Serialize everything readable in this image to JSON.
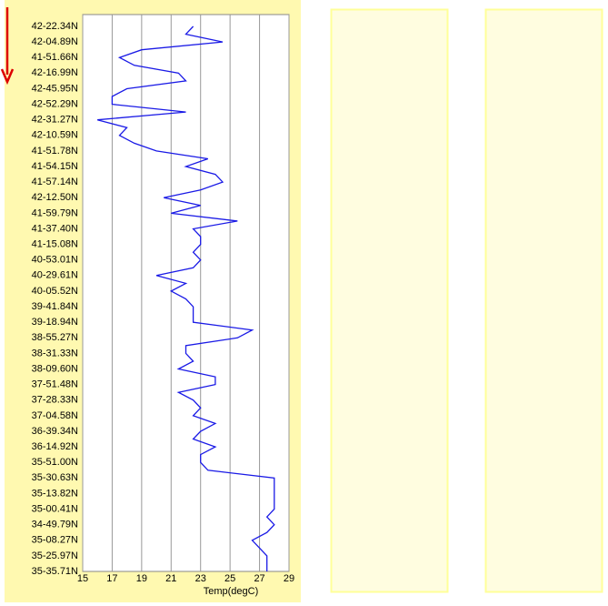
{
  "chart_data": {
    "type": "line",
    "xlabel": "Temp(degC)",
    "categories": [
      "42-22.34N",
      null,
      "42-04.89N",
      null,
      "41-51.66N",
      null,
      "42-16.99N",
      null,
      "42-45.95N",
      null,
      "42-52.29N",
      null,
      "42-31.27N",
      null,
      "42-10.59N",
      null,
      "41-51.78N",
      null,
      "41-54.15N",
      null,
      "41-57.14N",
      null,
      "42-12.50N",
      null,
      "41-59.79N",
      null,
      "41-37.40N",
      null,
      "41-15.08N",
      null,
      "40-53.01N",
      null,
      "40-29.61N",
      null,
      "40-05.52N",
      null,
      "39-41.84N",
      null,
      "39-18.94N",
      null,
      "38-55.27N",
      null,
      "38-31.33N",
      null,
      "38-09.60N",
      null,
      "37-51.48N",
      null,
      "37-28.33N",
      null,
      "37-04.58N",
      null,
      "36-39.34N",
      null,
      "36-14.92N",
      null,
      "35-51.00N",
      null,
      "35-30.63N",
      null,
      "35-13.82N",
      null,
      "35-00.41N",
      null,
      "34-49.79N",
      null,
      "35-08.27N",
      null,
      "35-25.97N",
      null,
      "35-35.71N"
    ],
    "series": [
      {
        "color": "#1a1ae6",
        "values": [
          22.5,
          22,
          24.5,
          19,
          17.5,
          18.5,
          21.5,
          22,
          18,
          17,
          17,
          22,
          16,
          18,
          17.5,
          18.5,
          20,
          23.5,
          22,
          24,
          24.5,
          23,
          20.5,
          23,
          21,
          25.5,
          22.5,
          23,
          23,
          22.5,
          23,
          22.5,
          20,
          22,
          21,
          22,
          22.5,
          22.5,
          22.5,
          26.5,
          25.5,
          22,
          22,
          22.5,
          21.5,
          24,
          24,
          21.5,
          22.5,
          23,
          22.5,
          24,
          23,
          22.5,
          24,
          23,
          23,
          23.5,
          28,
          28,
          28,
          28,
          28,
          27.5,
          28,
          27.5,
          26.5,
          27,
          27.5,
          27.5,
          27.5
        ]
      }
    ],
    "xlim": [
      15,
      29
    ],
    "xticks": [
      15,
      17,
      19,
      21,
      23,
      25,
      27,
      29
    ],
    "grid": true
  }
}
